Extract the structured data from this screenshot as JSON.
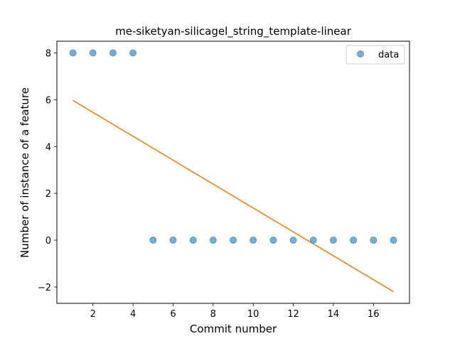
{
  "chart_data": {
    "type": "scatter",
    "title": "me-siketyan-silicagel_string_template-linear",
    "xlabel": "Commit number",
    "ylabel": "Number of instance of a feature",
    "xlim": [
      0.2,
      17.8
    ],
    "ylim": [
      -2.7,
      8.5
    ],
    "xticks": [
      2,
      4,
      6,
      8,
      10,
      12,
      14,
      16
    ],
    "yticks": [
      -2,
      0,
      2,
      4,
      6,
      8
    ],
    "xtick_labels": [
      "2",
      "4",
      "6",
      "8",
      "10",
      "12",
      "14",
      "16"
    ],
    "ytick_labels": [
      "−2",
      "0",
      "2",
      "4",
      "6",
      "8"
    ],
    "grid": false,
    "legend_position": "upper right",
    "series": [
      {
        "name": "data",
        "kind": "scatter",
        "color": "#1f77b4",
        "points": [
          [
            1,
            8
          ],
          [
            2,
            8
          ],
          [
            3,
            8
          ],
          [
            4,
            8
          ],
          [
            5,
            0
          ],
          [
            6,
            0
          ],
          [
            7,
            0
          ],
          [
            8,
            0
          ],
          [
            9,
            0
          ],
          [
            10,
            0
          ],
          [
            11,
            0
          ],
          [
            12,
            0
          ],
          [
            13,
            0
          ],
          [
            14,
            0
          ],
          [
            15,
            0
          ],
          [
            16,
            0
          ],
          [
            17,
            0
          ]
        ]
      },
      {
        "kind": "line",
        "color": "#ff7f0e",
        "points": [
          [
            1,
            5.97
          ],
          [
            17,
            -2.2
          ]
        ]
      }
    ]
  }
}
